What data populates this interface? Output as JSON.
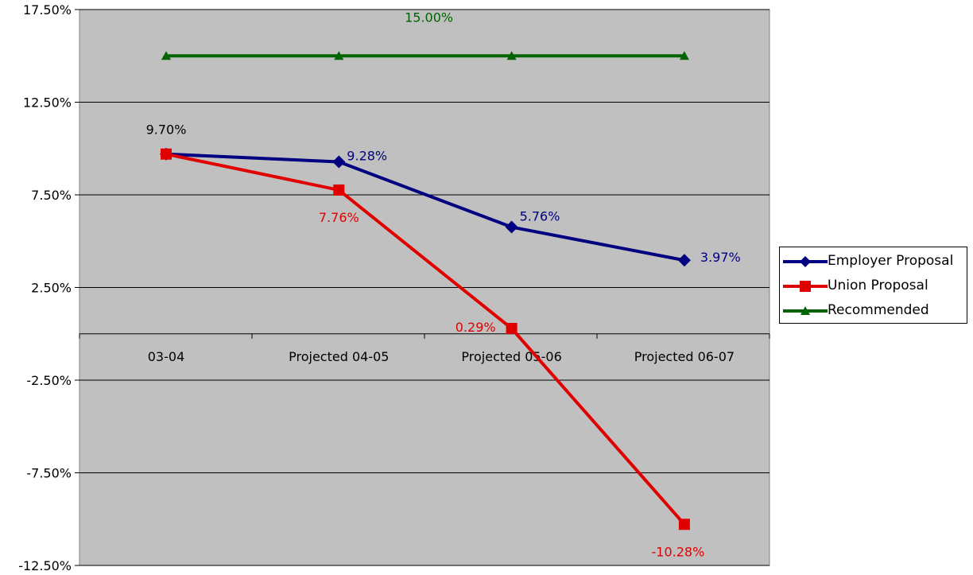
{
  "chart_data": {
    "type": "line",
    "title": "",
    "xlabel": "",
    "ylabel": "",
    "ylim": [
      -12.5,
      17.5
    ],
    "ytick_values": [
      -12.5,
      -7.5,
      -2.5,
      2.5,
      7.5,
      12.5,
      17.5
    ],
    "ytick_labels": [
      "-12.50%",
      "-7.50%",
      "-2.50%",
      "2.50%",
      "7.50%",
      "12.50%",
      "17.50%"
    ],
    "categories": [
      "03-04",
      "Projected 04-05",
      "Projected 05-06",
      "Projected 06-07"
    ],
    "grid": true,
    "plot_background": "#c0c0c0",
    "legend_position": "right",
    "series": [
      {
        "name": "Employer Proposal",
        "color": "#000080",
        "marker": "diamond",
        "values": [
          9.7,
          9.28,
          5.76,
          3.97
        ],
        "labels": [
          "",
          "9.28%",
          "5.76%",
          "3.97%"
        ]
      },
      {
        "name": "Union Proposal",
        "color": "#e00000",
        "marker": "square",
        "values": [
          9.7,
          7.76,
          0.29,
          -10.28
        ],
        "labels": [
          "9.70%",
          "7.76%",
          "0.29%",
          "-10.28%"
        ]
      },
      {
        "name": "Recommended",
        "color": "#006400",
        "marker": "triangle",
        "values": [
          15.0,
          15.0,
          15.0,
          15.0
        ],
        "labels": [
          "",
          "",
          "15.00%",
          ""
        ]
      }
    ]
  }
}
